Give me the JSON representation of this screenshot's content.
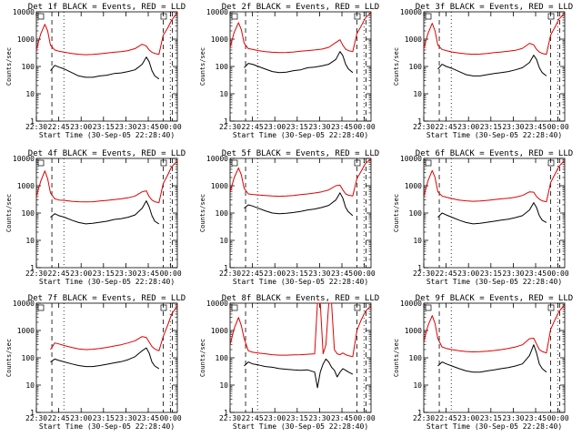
{
  "figure": {
    "xlabel": "Start Time (30-Sep-05 22:28:40)",
    "ylabel": "Counts/sec",
    "legend_text": "BLACK = Events, RED = LLD",
    "x_ticks": [
      "22:30",
      "22:45",
      "23:00",
      "23:15",
      "23:30",
      "23:45",
      "00:00"
    ],
    "y_ticks": [
      "1",
      "10",
      "100",
      "1000",
      "10000"
    ],
    "series_names": [
      "Events",
      "LLD"
    ],
    "colors": {
      "events": "#000000",
      "lld": "#e00000",
      "axes": "#000000",
      "background": "#ffffff"
    }
  },
  "chart_data": [
    {
      "type": "line",
      "title": "Det 1f BLACK = Events, RED = LLD",
      "detector": "1f",
      "xlabel": "Start Time (30-Sep-05 22:28:40)",
      "ylabel": "Counts/sec",
      "xlim": [
        0,
        100
      ],
      "ylim": [
        1,
        10000
      ],
      "yscale": "log",
      "x": [
        0,
        3,
        6,
        8,
        10,
        13,
        16,
        20,
        25,
        30,
        35,
        40,
        45,
        50,
        55,
        60,
        65,
        70,
        75,
        78,
        80,
        82,
        84,
        87,
        90,
        93,
        96,
        100
      ],
      "series": [
        {
          "name": "Events",
          "values": [
            null,
            null,
            null,
            null,
            70,
            110,
            95,
            80,
            60,
            45,
            40,
            40,
            45,
            48,
            55,
            58,
            65,
            75,
            120,
            220,
            150,
            70,
            45,
            35,
            null,
            null,
            null,
            null
          ]
        },
        {
          "name": "LLD",
          "values": [
            400,
            1500,
            3500,
            2000,
            600,
            400,
            360,
            330,
            300,
            280,
            270,
            275,
            290,
            310,
            330,
            350,
            380,
            450,
            650,
            560,
            400,
            330,
            300,
            280,
            1400,
            2500,
            5000,
            9500
          ]
        }
      ]
    },
    {
      "type": "line",
      "title": "Det 2f BLACK = Events, RED = LLD",
      "detector": "2f",
      "xlabel": "Start Time (30-Sep-05 22:28:40)",
      "ylabel": "Counts/sec",
      "xlim": [
        0,
        100
      ],
      "ylim": [
        1,
        10000
      ],
      "yscale": "log",
      "x": [
        0,
        3,
        6,
        8,
        10,
        13,
        16,
        20,
        25,
        30,
        35,
        40,
        45,
        50,
        55,
        60,
        65,
        70,
        75,
        78,
        80,
        82,
        84,
        87,
        90,
        93,
        96,
        100
      ],
      "series": [
        {
          "name": "Events",
          "values": [
            null,
            null,
            null,
            null,
            90,
            130,
            120,
            100,
            80,
            65,
            60,
            62,
            70,
            75,
            90,
            95,
            105,
            120,
            180,
            350,
            250,
            120,
            80,
            60,
            null,
            null,
            null,
            null
          ]
        },
        {
          "name": "LLD",
          "values": [
            500,
            1800,
            4000,
            2200,
            700,
            450,
            420,
            380,
            350,
            330,
            320,
            325,
            340,
            360,
            380,
            400,
            430,
            500,
            750,
            950,
            600,
            430,
            380,
            350,
            1600,
            3000,
            6000,
            9500
          ]
        }
      ]
    },
    {
      "type": "line",
      "title": "Det 3f BLACK = Events, RED = LLD",
      "detector": "3f",
      "xlabel": "Start Time (30-Sep-05 22:28:40)",
      "ylabel": "Counts/sec",
      "xlim": [
        0,
        100
      ],
      "ylim": [
        1,
        10000
      ],
      "yscale": "log",
      "x": [
        0,
        3,
        6,
        8,
        10,
        13,
        16,
        20,
        25,
        30,
        35,
        40,
        45,
        50,
        55,
        60,
        65,
        70,
        75,
        78,
        80,
        82,
        84,
        87,
        90,
        93,
        96,
        100
      ],
      "series": [
        {
          "name": "Events",
          "values": [
            null,
            null,
            null,
            null,
            80,
            120,
            100,
            85,
            65,
            50,
            45,
            45,
            50,
            55,
            60,
            65,
            75,
            90,
            140,
            260,
            180,
            90,
            60,
            45,
            null,
            null,
            null,
            null
          ]
        },
        {
          "name": "LLD",
          "values": [
            450,
            1600,
            3800,
            2000,
            600,
            420,
            380,
            340,
            310,
            290,
            280,
            285,
            300,
            320,
            340,
            360,
            390,
            460,
            700,
            620,
            420,
            340,
            300,
            280,
            1400,
            2700,
            5500,
            9000
          ]
        }
      ]
    },
    {
      "type": "line",
      "title": "Det 4f BLACK = Events, RED = LLD",
      "detector": "4f",
      "xlabel": "Start Time (30-Sep-05 22:28:40)",
      "ylabel": "Counts/sec",
      "xlim": [
        0,
        100
      ],
      "ylim": [
        1,
        10000
      ],
      "yscale": "log",
      "x": [
        0,
        3,
        6,
        8,
        10,
        13,
        16,
        20,
        25,
        30,
        35,
        40,
        45,
        50,
        55,
        60,
        65,
        70,
        75,
        78,
        80,
        82,
        84,
        87,
        90,
        93,
        96,
        100
      ],
      "series": [
        {
          "name": "Events",
          "values": [
            null,
            null,
            null,
            null,
            70,
            95,
            80,
            70,
            55,
            45,
            40,
            42,
            46,
            50,
            58,
            62,
            70,
            85,
            150,
            280,
            170,
            80,
            50,
            40,
            null,
            null,
            null,
            null
          ]
        },
        {
          "name": "LLD",
          "values": [
            400,
            1400,
            3500,
            1800,
            550,
            330,
            300,
            290,
            270,
            260,
            255,
            260,
            275,
            290,
            310,
            330,
            360,
            420,
            600,
            650,
            400,
            300,
            260,
            240,
            1200,
            2400,
            5000,
            8000
          ]
        }
      ]
    },
    {
      "type": "line",
      "title": "Det 5f BLACK = Events, RED = LLD",
      "detector": "5f",
      "xlabel": "Start Time (30-Sep-05 22:28:40)",
      "ylabel": "Counts/sec",
      "xlim": [
        0,
        100
      ],
      "ylim": [
        1,
        10000
      ],
      "yscale": "log",
      "x": [
        0,
        3,
        6,
        8,
        10,
        13,
        16,
        20,
        25,
        30,
        35,
        40,
        45,
        50,
        55,
        60,
        65,
        70,
        75,
        78,
        80,
        82,
        84,
        87,
        90,
        93,
        96,
        100
      ],
      "series": [
        {
          "name": "Events",
          "values": [
            null,
            null,
            null,
            null,
            150,
            200,
            180,
            150,
            120,
            100,
            95,
            98,
            105,
            115,
            130,
            140,
            160,
            190,
            300,
            550,
            350,
            160,
            110,
            80,
            null,
            null,
            null,
            null
          ]
        },
        {
          "name": "LLD",
          "values": [
            600,
            2000,
            4500,
            2500,
            800,
            500,
            480,
            460,
            440,
            420,
            410,
            420,
            440,
            470,
            500,
            540,
            600,
            700,
            1000,
            1050,
            700,
            500,
            450,
            420,
            1800,
            3400,
            6500,
            9500
          ]
        }
      ]
    },
    {
      "type": "line",
      "title": "Det 6f BLACK = Events, RED = LLD",
      "detector": "6f",
      "xlabel": "Start Time (30-Sep-05 22:28:40)",
      "ylabel": "Counts/sec",
      "xlim": [
        0,
        100
      ],
      "ylim": [
        1,
        10000
      ],
      "yscale": "log",
      "x": [
        0,
        3,
        6,
        8,
        10,
        13,
        16,
        20,
        25,
        30,
        35,
        40,
        45,
        50,
        55,
        60,
        65,
        70,
        75,
        78,
        80,
        82,
        84,
        87,
        90,
        93,
        96,
        100
      ],
      "series": [
        {
          "name": "Events",
          "values": [
            null,
            null,
            null,
            null,
            70,
            100,
            85,
            70,
            55,
            45,
            40,
            42,
            46,
            50,
            55,
            60,
            68,
            80,
            130,
            240,
            160,
            80,
            55,
            45,
            null,
            null,
            null,
            null
          ]
        },
        {
          "name": "LLD",
          "values": [
            400,
            1500,
            3600,
            2000,
            600,
            420,
            380,
            340,
            300,
            280,
            270,
            275,
            290,
            310,
            330,
            350,
            380,
            440,
            600,
            580,
            400,
            320,
            280,
            260,
            1300,
            2600,
            5200,
            8500
          ]
        }
      ]
    },
    {
      "type": "line",
      "title": "Det 7f BLACK = Events, RED = LLD",
      "detector": "7f",
      "xlabel": "Start Time (30-Sep-05 22:28:40)",
      "ylabel": "Counts/sec",
      "xlim": [
        0,
        100
      ],
      "ylim": [
        1,
        10000
      ],
      "yscale": "log",
      "x": [
        0,
        3,
        6,
        8,
        10,
        13,
        16,
        20,
        25,
        30,
        35,
        40,
        45,
        50,
        55,
        60,
        65,
        70,
        75,
        78,
        80,
        82,
        84,
        87,
        90,
        93,
        96,
        100
      ],
      "series": [
        {
          "name": "Events",
          "values": [
            null,
            null,
            null,
            null,
            70,
            90,
            80,
            70,
            60,
            52,
            48,
            48,
            52,
            58,
            65,
            72,
            85,
            110,
            180,
            230,
            150,
            70,
            50,
            40,
            null,
            null,
            null,
            null
          ]
        },
        {
          "name": "LLD",
          "values": [
            null,
            null,
            null,
            null,
            200,
            350,
            320,
            280,
            240,
            210,
            200,
            205,
            220,
            240,
            270,
            300,
            350,
            420,
            600,
            560,
            380,
            260,
            210,
            180,
            600,
            1500,
            4000,
            8000
          ]
        }
      ]
    },
    {
      "type": "line",
      "title": "Det 8f BLACK = Events, RED = LLD",
      "detector": "8f",
      "xlabel": "Start Time (30-Sep-05 22:28:40)",
      "ylabel": "Counts/sec",
      "xlim": [
        0,
        100
      ],
      "ylim": [
        1,
        10000
      ],
      "yscale": "log",
      "x": [
        0,
        3,
        6,
        8,
        10,
        13,
        16,
        20,
        25,
        30,
        35,
        40,
        45,
        50,
        55,
        60,
        62,
        64,
        66,
        68,
        70,
        72,
        74,
        76,
        78,
        80,
        82,
        84,
        87,
        90,
        93,
        96,
        100
      ],
      "series": [
        {
          "name": "Events",
          "values": [
            null,
            null,
            null,
            null,
            50,
            70,
            60,
            55,
            48,
            45,
            40,
            38,
            36,
            35,
            36,
            30,
            8,
            30,
            60,
            90,
            70,
            45,
            35,
            20,
            30,
            40,
            35,
            30,
            25,
            null,
            null,
            null,
            null
          ]
        },
        {
          "name": "LLD",
          "values": [
            300,
            1200,
            3000,
            1500,
            500,
            180,
            160,
            150,
            140,
            130,
            125,
            125,
            128,
            130,
            135,
            140,
            10000,
            10000,
            140,
            300,
            10000,
            10000,
            200,
            140,
            130,
            150,
            130,
            120,
            110,
            1000,
            2400,
            5000,
            8000
          ]
        }
      ]
    },
    {
      "type": "line",
      "title": "Det 9f BLACK = Events, RED = LLD",
      "detector": "9f",
      "xlabel": "Start Time (30-Sep-05 22:28:40)",
      "ylabel": "Counts/sec",
      "xlim": [
        0,
        100
      ],
      "ylim": [
        1,
        10000
      ],
      "yscale": "log",
      "x": [
        0,
        3,
        6,
        8,
        10,
        13,
        16,
        20,
        25,
        30,
        35,
        40,
        45,
        50,
        55,
        60,
        65,
        70,
        75,
        78,
        80,
        82,
        84,
        87,
        90,
        93,
        96,
        100
      ],
      "series": [
        {
          "name": "Events",
          "values": [
            null,
            null,
            null,
            null,
            50,
            70,
            60,
            50,
            40,
            33,
            30,
            30,
            33,
            36,
            40,
            44,
            50,
            60,
            120,
            300,
            150,
            60,
            40,
            30,
            null,
            null,
            null,
            null
          ]
        },
        {
          "name": "LLD",
          "values": [
            400,
            1500,
            3500,
            1800,
            500,
            250,
            220,
            200,
            180,
            170,
            165,
            168,
            175,
            185,
            200,
            220,
            250,
            300,
            500,
            520,
            320,
            200,
            170,
            150,
            1100,
            2400,
            5000,
            9000
          ]
        }
      ]
    }
  ]
}
